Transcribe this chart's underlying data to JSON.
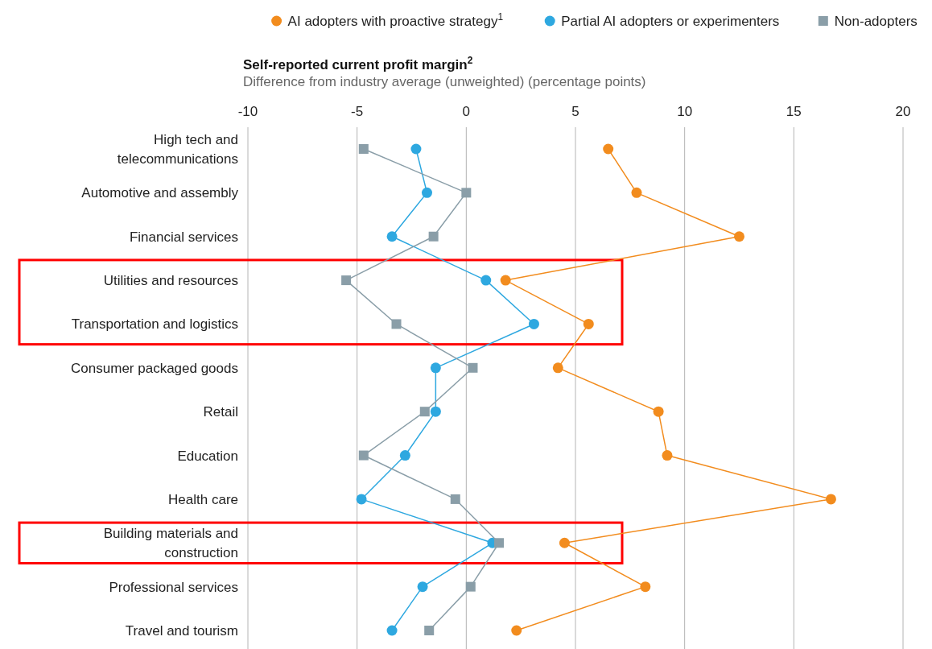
{
  "chart_data": {
    "type": "line",
    "orientation": "horizontal",
    "title": "Self-reported current profit margin$^{2}$",
    "subtitle": "Difference from industry average (unweighted) (percentage points)",
    "categories": [
      "High tech and telecommunications",
      "Automotive and assembly",
      "Financial services",
      "Utilities and resources",
      "Transportation and logistics",
      "Consumer packaged goods",
      "Retail",
      "Education",
      "Health care",
      "Building materials and construction",
      "Professional services",
      "Travel and tourism"
    ],
    "series": [
      {
        "name": "AI adopters with proactive strategy$^{1}$",
        "color": "#f28c1e",
        "marker": "circle",
        "values": [
          6.5,
          7.8,
          12.5,
          1.8,
          5.6,
          4.2,
          8.8,
          9.2,
          16.7,
          4.5,
          8.2,
          2.3
        ]
      },
      {
        "name": "Partial AI adopters or experimenters",
        "color": "#2ea8e0",
        "marker": "circle",
        "values": [
          -2.3,
          -1.8,
          -3.4,
          0.9,
          3.1,
          -1.4,
          -1.4,
          -2.8,
          -4.8,
          1.2,
          -2.0,
          -3.4
        ]
      },
      {
        "name": "Non-adopters",
        "color": "#8a9ea8",
        "marker": "square",
        "values": [
          -4.7,
          0,
          -1.5,
          -5.5,
          -3.2,
          0.3,
          -1.9,
          -4.7,
          -0.5,
          1.5,
          0.2,
          -1.7
        ]
      }
    ],
    "xlim": [
      -10,
      20
    ],
    "xticks": [
      -10,
      -5,
      0,
      5,
      10,
      15,
      20
    ],
    "grid": "x",
    "legend": "top right"
  }
}
